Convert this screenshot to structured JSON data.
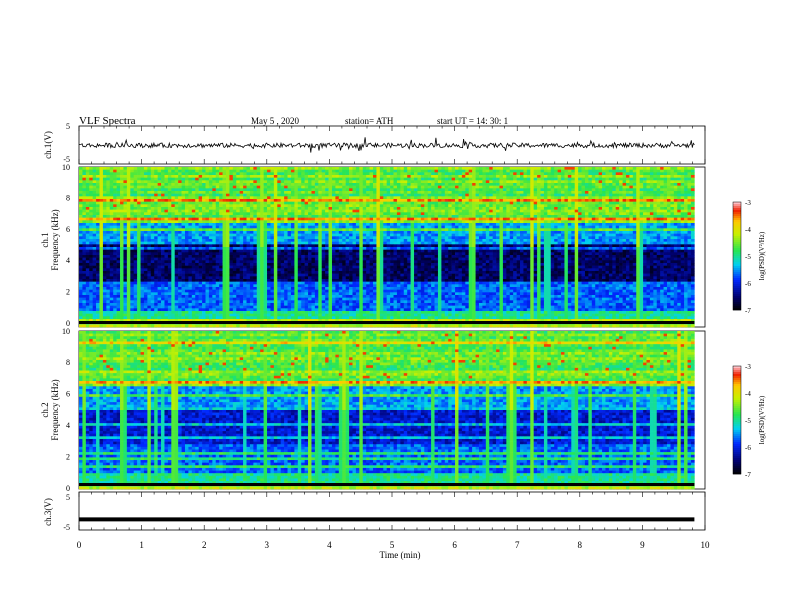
{
  "header": {
    "title": "VLF  Spectra",
    "date": "May 5  , 2020",
    "station": "station= ATH",
    "start": "start  UT  =    14: 30: 1"
  },
  "chart_data": [
    {
      "type": "line",
      "panel": "ch1-waveform",
      "ylabel": "ch.1(V)",
      "ylim": [
        -5,
        5
      ],
      "yticks": [
        "5",
        "-5"
      ],
      "xlim": [
        0,
        10
      ],
      "description_values": {
        "mean": -0.1,
        "noise_amplitude": 0.6
      }
    },
    {
      "type": "heatmap",
      "panel": "ch1-spectrogram",
      "ylabel": "Frequency  (kHz)",
      "ylabel2": "ch.1",
      "ylim": [
        0,
        10
      ],
      "yticks": [
        "0",
        "2",
        "4",
        "6",
        "8",
        "10"
      ],
      "xlim": [
        0,
        9.83
      ],
      "colorbar": {
        "label": "log(PSD)(V²/Hz)",
        "range": [
          -7,
          -3
        ],
        "ticks": [
          "-3",
          "-4",
          "-5",
          "-6",
          "-7"
        ]
      }
    },
    {
      "type": "heatmap",
      "panel": "ch2-spectrogram",
      "ylabel": "Frequency  (kHz)",
      "ylabel2": "ch.2",
      "ylim": [
        0,
        10
      ],
      "yticks": [
        "0",
        "2",
        "4",
        "6",
        "8",
        "10"
      ],
      "xlim": [
        0,
        9.83
      ],
      "colorbar": {
        "label": "log(PSD)(V²/Hz)",
        "range": [
          -7,
          -3
        ],
        "ticks": [
          "-3",
          "-4",
          "-5",
          "-6",
          "-7"
        ]
      }
    },
    {
      "type": "line",
      "panel": "ch3-waveform",
      "ylabel": "ch.3(V)",
      "ylim": [
        -5,
        5
      ],
      "yticks": [
        "5",
        "-5"
      ],
      "xlim": [
        0,
        10
      ],
      "description_values": {
        "level": -2.2
      }
    }
  ],
  "xaxis": {
    "label": "Time  (min)",
    "ticks": [
      "0",
      "1",
      "2",
      "3",
      "4",
      "5",
      "6",
      "7",
      "8",
      "9",
      "10"
    ]
  },
  "colors": {
    "bg": "#ffffff",
    "frame": "#000000"
  }
}
